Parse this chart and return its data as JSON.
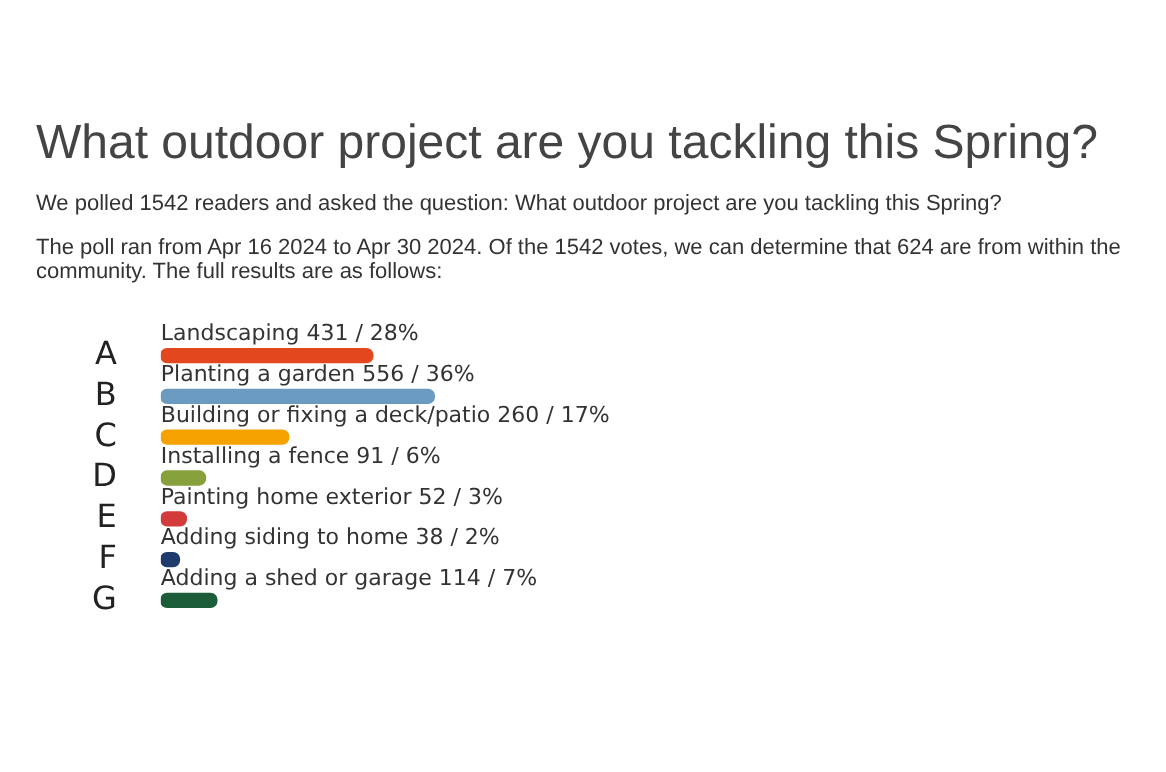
{
  "chart_data": {
    "type": "bar",
    "orientation": "horizontal",
    "title": "What outdoor project are you tackling this Spring?",
    "subtitle": "We polled 1542 readers and asked the question: What outdoor project are you tackling this Spring?",
    "annotations": [
      "The poll ran from Apr 16 2024 to Apr 30 2024. Of the 1542 votes, we can determine that 624 are from within the community. The full results are as follows:"
    ],
    "categories": [
      "A",
      "B",
      "C",
      "D",
      "E",
      "F",
      "G"
    ],
    "values": [
      431,
      556,
      260,
      91,
      52,
      38,
      114
    ],
    "colors": [
      "#e2471d",
      "#6b9bc0",
      "#f5a100",
      "#86a03c",
      "#d33a3a",
      "#1f3b6e",
      "#1d5c38"
    ],
    "value_labels": [
      "Landscaping 431 / 28%",
      "Planting a garden 556 / 36%",
      "Building or fixing a deck/patio 260 / 17%",
      "Installing a fence 91 / 6%",
      "Painting home exterior 52 / 3%",
      "Adding siding to home 38 / 2%",
      "Adding a shed or garage 114 / 7%"
    ],
    "legend": false
  }
}
